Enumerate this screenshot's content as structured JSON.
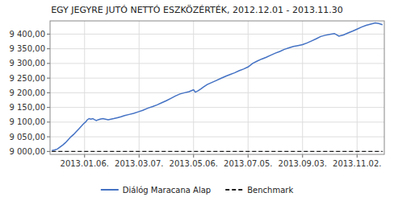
{
  "chart_data": {
    "type": "line",
    "title": "EGY JEGYRE JUTÓ NETTÓ ESZKÖZÉRTÉK, 2012.12.01 - 2013.11.30",
    "x": [
      0,
      3,
      6,
      9,
      12,
      15,
      18,
      21,
      24,
      27,
      30,
      33,
      35,
      37,
      39,
      41,
      43,
      45,
      47,
      49,
      51,
      53,
      56,
      59,
      62,
      65,
      68,
      72,
      76,
      80,
      85,
      90,
      95,
      100,
      106,
      111,
      116,
      121,
      126,
      131,
      136,
      141,
      146,
      151,
      156,
      158,
      161,
      164,
      167,
      171,
      176,
      181,
      186,
      191,
      196,
      201,
      206,
      211,
      216,
      221,
      226,
      231,
      236,
      241,
      246,
      251,
      256,
      261,
      266,
      271,
      276,
      281,
      286,
      291,
      296,
      301,
      306,
      311,
      316,
      321,
      326,
      331,
      336,
      341,
      346,
      351,
      356,
      360,
      364
    ],
    "series": [
      {
        "name": "Diálóg Maracana Alap",
        "color": "#4472c4",
        "line_style": "solid",
        "values": [
          9003,
          9005,
          9008,
          9015,
          9022,
          9030,
          9040,
          9050,
          9058,
          9068,
          9078,
          9088,
          9095,
          9100,
          9108,
          9112,
          9110,
          9112,
          9108,
          9105,
          9108,
          9110,
          9112,
          9110,
          9108,
          9110,
          9112,
          9115,
          9118,
          9122,
          9126,
          9130,
          9135,
          9140,
          9148,
          9153,
          9159,
          9166,
          9173,
          9181,
          9189,
          9196,
          9200,
          9204,
          9210,
          9202,
          9207,
          9213,
          9220,
          9228,
          9235,
          9242,
          9249,
          9256,
          9262,
          9268,
          9275,
          9281,
          9288,
          9300,
          9308,
          9315,
          9321,
          9328,
          9335,
          9341,
          9348,
          9353,
          9358,
          9361,
          9364,
          9370,
          9377,
          9384,
          9392,
          9396,
          9399,
          9402,
          9393,
          9397,
          9404,
          9410,
          9417,
          9424,
          9430,
          9434,
          9438,
          9436,
          9432
        ]
      },
      {
        "name": "Benchmark",
        "color": "#1f1f1f",
        "line_style": "dashed",
        "x": [
          0,
          364
        ],
        "values": [
          9000,
          9000
        ]
      }
    ],
    "xlim": [
      -2,
      366
    ],
    "xticks": [
      {
        "value": 36,
        "label": "2013.01.06."
      },
      {
        "value": 96,
        "label": "2013.03.07."
      },
      {
        "value": 156,
        "label": "2013.05.06."
      },
      {
        "value": 216,
        "label": "2013.07.05."
      },
      {
        "value": 276,
        "label": "2013.09.03."
      },
      {
        "value": 336,
        "label": "2013.11.02."
      }
    ],
    "ylim": [
      8990,
      9445
    ],
    "yticks": [
      {
        "value": 9000,
        "label": "9 000,00"
      },
      {
        "value": 9050,
        "label": "9 050,00"
      },
      {
        "value": 9100,
        "label": "9 100,00"
      },
      {
        "value": 9150,
        "label": "9 150,00"
      },
      {
        "value": 9200,
        "label": "9 200,00"
      },
      {
        "value": 9250,
        "label": "9 250,00"
      },
      {
        "value": 9300,
        "label": "9 300,00"
      },
      {
        "value": 9350,
        "label": "9 350,00"
      },
      {
        "value": 9400,
        "label": "9 400,00"
      }
    ],
    "grid": true,
    "legend": "bottom"
  }
}
